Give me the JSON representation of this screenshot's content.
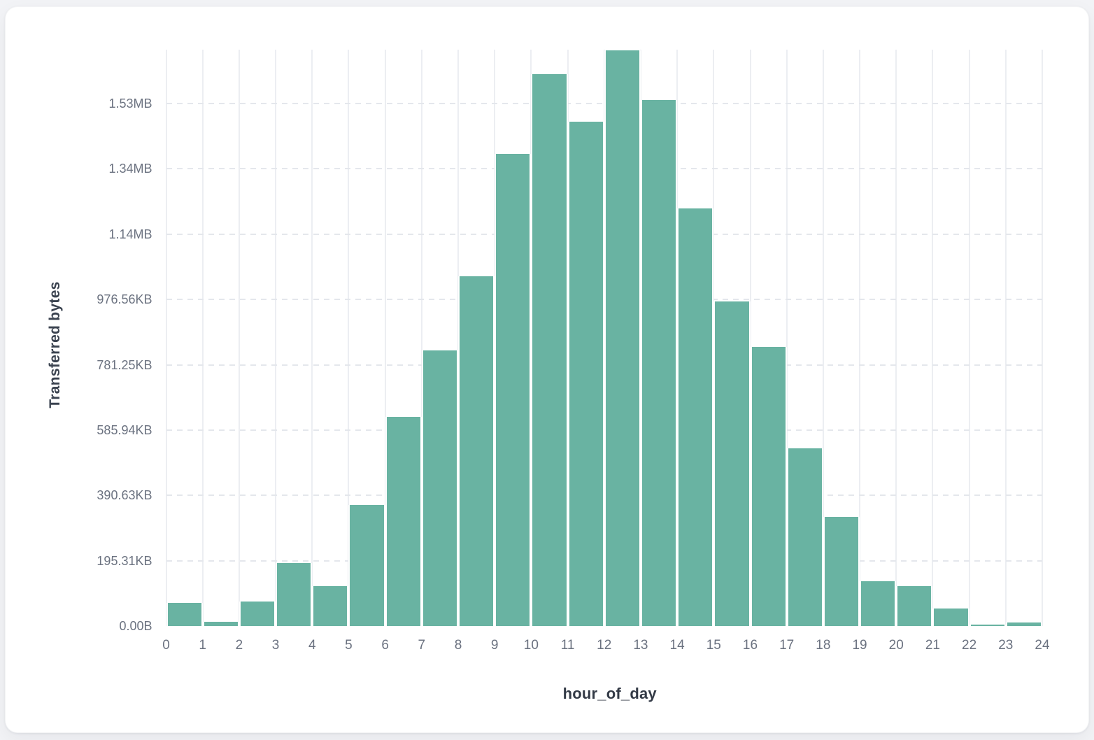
{
  "colors": {
    "bar": "#69b3a2",
    "page_bg": "#f2f3f6",
    "card_bg": "#ffffff",
    "tick_label": "#6b7280",
    "axis_title": "#3b4350",
    "v_gridline": "#eceef2",
    "h_gridline": "#e4e7ec"
  },
  "chart_data": {
    "type": "bar",
    "title": "",
    "xlabel": "hour_of_day",
    "ylabel": "Transferred bytes",
    "categories": [
      0,
      1,
      2,
      3,
      4,
      5,
      6,
      7,
      8,
      9,
      10,
      11,
      12,
      13,
      14,
      15,
      16,
      17,
      18,
      19,
      20,
      21,
      22,
      23
    ],
    "values": [
      70000,
      13000,
      75000,
      193000,
      123000,
      370000,
      641000,
      845000,
      1070000,
      1445000,
      1690000,
      1545000,
      1763000,
      1610000,
      1278000,
      993000,
      855000,
      545000,
      335000,
      137000,
      122000,
      54000,
      4000,
      10000
    ],
    "values_unit": "bytes",
    "x_tick_labels": [
      "0",
      "1",
      "2",
      "3",
      "4",
      "5",
      "6",
      "7",
      "8",
      "9",
      "10",
      "11",
      "12",
      "13",
      "14",
      "15",
      "16",
      "17",
      "18",
      "19",
      "20",
      "21",
      "22",
      "23",
      "24"
    ],
    "y_ticks": [
      {
        "value": 0,
        "label": "0.00B"
      },
      {
        "value": 200000,
        "label": "195.31KB"
      },
      {
        "value": 400000,
        "label": "390.63KB"
      },
      {
        "value": 600000,
        "label": "585.94KB"
      },
      {
        "value": 800000,
        "label": "781.25KB"
      },
      {
        "value": 1000000,
        "label": "976.56KB"
      },
      {
        "value": 1200000,
        "label": "1.14MB"
      },
      {
        "value": 1400000,
        "label": "1.34MB"
      },
      {
        "value": 1600000,
        "label": "1.53MB"
      }
    ],
    "ylim": [
      0,
      1765000
    ],
    "grid": true,
    "legend": false
  }
}
